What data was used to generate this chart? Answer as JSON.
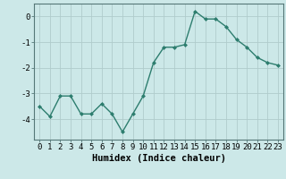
{
  "x": [
    0,
    1,
    2,
    3,
    4,
    5,
    6,
    7,
    8,
    9,
    10,
    11,
    12,
    13,
    14,
    15,
    16,
    17,
    18,
    19,
    20,
    21,
    22,
    23
  ],
  "y": [
    -3.5,
    -3.9,
    -3.1,
    -3.1,
    -3.8,
    -3.8,
    -3.4,
    -3.8,
    -4.5,
    -3.8,
    -3.1,
    -1.8,
    -1.2,
    -1.2,
    -1.1,
    0.2,
    -0.1,
    -0.1,
    -0.4,
    -0.9,
    -1.2,
    -1.6,
    -1.8,
    -1.9
  ],
  "line_color": "#2d7d6e",
  "marker": "D",
  "marker_size": 2.0,
  "bg_color": "#cce8e8",
  "grid_color": "#b0cccc",
  "xlabel": "Humidex (Indice chaleur)",
  "ylim": [
    -4.8,
    0.5
  ],
  "yticks": [
    0,
    -1,
    -2,
    -3,
    -4
  ],
  "xticks": [
    0,
    1,
    2,
    3,
    4,
    5,
    6,
    7,
    8,
    9,
    10,
    11,
    12,
    13,
    14,
    15,
    16,
    17,
    18,
    19,
    20,
    21,
    22,
    23
  ],
  "tick_fontsize": 6.5,
  "xlabel_fontsize": 7.5,
  "line_width": 1.0
}
